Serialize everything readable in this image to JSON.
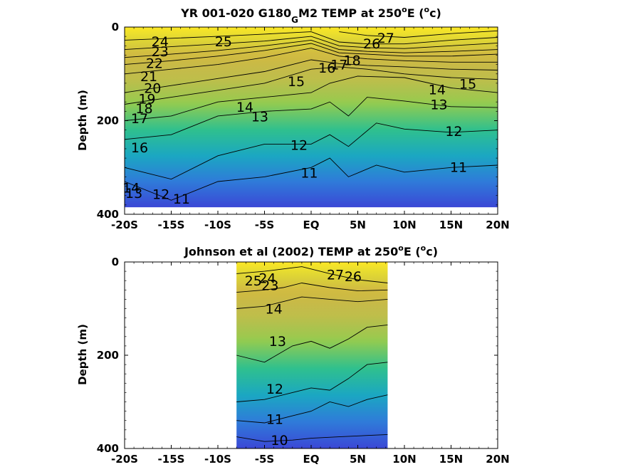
{
  "colors": {
    "colormap": [
      "#3b48d6",
      "#2f7bd9",
      "#1ba7c2",
      "#2fc08e",
      "#8fcb52",
      "#d6bf3c",
      "#f8ac3a",
      "#fde725"
    ],
    "contour_line": "#000000"
  },
  "chart_data": [
    {
      "type": "heatmap",
      "title_main": "YR 001-020 G180",
      "title_sub": "G",
      "title_rest": "M2 TEMP at 250",
      "title_deg": "o",
      "title_end": "E (",
      "title_unit_deg": "o",
      "title_unit": "c)",
      "ylabel": "Depth (m)",
      "xlabel": "",
      "xlim": [
        -20,
        20
      ],
      "ylim": [
        400,
        0
      ],
      "xticks": [
        {
          "value": -20,
          "label": "-20S"
        },
        {
          "value": -15,
          "label": "-15S"
        },
        {
          "value": -10,
          "label": "-10S"
        },
        {
          "value": -5,
          "label": "-5S"
        },
        {
          "value": 0,
          "label": "EQ"
        },
        {
          "value": 5,
          "label": "5N"
        },
        {
          "value": 10,
          "label": "10N"
        },
        {
          "value": 15,
          "label": "15N"
        },
        {
          "value": 20,
          "label": "20N"
        }
      ],
      "yticks": [
        {
          "value": 0,
          "label": "0"
        },
        {
          "value": 200,
          "label": "200"
        },
        {
          "value": 400,
          "label": "400"
        }
      ],
      "data_extent": {
        "lat": [
          -20,
          20
        ],
        "depth": [
          0,
          385
        ]
      },
      "contours": [
        {
          "level": 11,
          "points": [
            [
              -20,
              330
            ],
            [
              -15,
              370
            ],
            [
              -10,
              330
            ],
            [
              -5,
              320
            ],
            [
              0,
              300
            ],
            [
              2,
              280
            ],
            [
              4,
              320
            ],
            [
              7,
              295
            ],
            [
              10,
              310
            ],
            [
              15,
              300
            ],
            [
              20,
              295
            ]
          ]
        },
        {
          "level": 12,
          "points": [
            [
              -20,
              300
            ],
            [
              -15,
              325
            ],
            [
              -10,
              275
            ],
            [
              -5,
              250
            ],
            [
              0,
              250
            ],
            [
              2,
              230
            ],
            [
              4,
              255
            ],
            [
              7,
              205
            ],
            [
              10,
              218
            ],
            [
              15,
              225
            ],
            [
              20,
              220
            ]
          ]
        },
        {
          "level": 13,
          "points": [
            [
              -20,
              240
            ],
            [
              -15,
              230
            ],
            [
              -10,
              190
            ],
            [
              -5,
              180
            ],
            [
              0,
              175
            ],
            [
              2,
              160
            ],
            [
              4,
              190
            ],
            [
              6,
              150
            ],
            [
              10,
              158
            ],
            [
              15,
              170
            ],
            [
              20,
              172
            ]
          ]
        },
        {
          "level": 14,
          "points": [
            [
              -20,
              200
            ],
            [
              -15,
              190
            ],
            [
              -10,
              160
            ],
            [
              -5,
              150
            ],
            [
              0,
              140
            ],
            [
              2,
              120
            ],
            [
              5,
              105
            ],
            [
              10,
              108
            ],
            [
              15,
              130
            ],
            [
              20,
              140
            ]
          ]
        },
        {
          "level": 15,
          "points": [
            [
              -20,
              165
            ],
            [
              -15,
              150
            ],
            [
              -10,
              135
            ],
            [
              -5,
              120
            ],
            [
              0,
              90
            ],
            [
              3,
              85
            ],
            [
              6,
              90
            ],
            [
              10,
              100
            ],
            [
              15,
              108
            ],
            [
              20,
              112
            ]
          ]
        },
        {
          "level": 16,
          "points": [
            [
              -20,
              140
            ],
            [
              -15,
              125
            ],
            [
              -10,
              110
            ],
            [
              -5,
              95
            ],
            [
              0,
              70
            ],
            [
              3,
              78
            ],
            [
              6,
              82
            ],
            [
              10,
              85
            ],
            [
              15,
              90
            ],
            [
              20,
              92
            ]
          ]
        },
        {
          "level": 20,
          "points": [
            [
              -20,
              100
            ],
            [
              -15,
              90
            ],
            [
              -10,
              80
            ],
            [
              -5,
              65
            ],
            [
              0,
              45
            ],
            [
              3,
              62
            ],
            [
              6,
              68
            ],
            [
              10,
              72
            ],
            [
              15,
              75
            ],
            [
              20,
              75
            ]
          ]
        },
        {
          "level": 22,
          "points": [
            [
              -20,
              80
            ],
            [
              -15,
              72
            ],
            [
              -10,
              62
            ],
            [
              -5,
              50
            ],
            [
              0,
              35
            ],
            [
              3,
              55
            ],
            [
              6,
              58
            ],
            [
              10,
              62
            ],
            [
              15,
              62
            ],
            [
              20,
              58
            ]
          ]
        },
        {
          "level": 23,
          "points": [
            [
              -20,
              65
            ],
            [
              -15,
              58
            ],
            [
              -10,
              50
            ],
            [
              -5,
              40
            ],
            [
              0,
              28
            ],
            [
              3,
              48
            ],
            [
              6,
              52
            ],
            [
              10,
              55
            ],
            [
              15,
              52
            ],
            [
              20,
              48
            ]
          ]
        },
        {
          "level": 24,
          "points": [
            [
              -20,
              48
            ],
            [
              -15,
              42
            ],
            [
              -10,
              36
            ],
            [
              -5,
              30
            ],
            [
              0,
              20
            ],
            [
              3,
              40
            ],
            [
              6,
              44
            ],
            [
              10,
              46
            ],
            [
              15,
              40
            ],
            [
              20,
              34
            ]
          ]
        },
        {
          "level": 25,
          "points": [
            [
              -20,
              28
            ],
            [
              -15,
              24
            ],
            [
              -10,
              20
            ],
            [
              -5,
              15
            ],
            [
              0,
              10
            ],
            [
              3,
              32
            ],
            [
              6,
              36
            ],
            [
              10,
              36
            ],
            [
              15,
              28
            ],
            [
              20,
              22
            ]
          ]
        },
        {
          "level": 27,
          "points": [
            [
              3,
              10
            ],
            [
              6,
              18
            ],
            [
              10,
              22
            ],
            [
              15,
              14
            ],
            [
              20,
              8
            ]
          ]
        }
      ],
      "contour_labels": [
        {
          "text": "24",
          "lat": -16.2,
          "depth": 33
        },
        {
          "text": "25",
          "lat": -9.4,
          "depth": 33
        },
        {
          "text": "23",
          "lat": -16.2,
          "depth": 54
        },
        {
          "text": "22",
          "lat": -16.8,
          "depth": 79
        },
        {
          "text": "21",
          "lat": -17.4,
          "depth": 107
        },
        {
          "text": "20",
          "lat": -17.0,
          "depth": 132
        },
        {
          "text": "19",
          "lat": -17.6,
          "depth": 155
        },
        {
          "text": "18",
          "lat": -17.9,
          "depth": 176
        },
        {
          "text": "17",
          "lat": -18.4,
          "depth": 197
        },
        {
          "text": "16",
          "lat": -18.4,
          "depth": 259
        },
        {
          "text": "15",
          "lat": -1.6,
          "depth": 118
        },
        {
          "text": "14",
          "lat": -7.1,
          "depth": 173
        },
        {
          "text": "13",
          "lat": -5.5,
          "depth": 193
        },
        {
          "text": "12",
          "lat": -1.3,
          "depth": 254
        },
        {
          "text": "11",
          "lat": -0.2,
          "depth": 313
        },
        {
          "text": "16",
          "lat": 1.7,
          "depth": 89
        },
        {
          "text": "17",
          "lat": 3.0,
          "depth": 82
        },
        {
          "text": "18",
          "lat": 4.4,
          "depth": 73
        },
        {
          "text": "27",
          "lat": 8.0,
          "depth": 25
        },
        {
          "text": "26",
          "lat": 6.5,
          "depth": 37
        },
        {
          "text": "14",
          "lat": 13.5,
          "depth": 135
        },
        {
          "text": "15",
          "lat": 16.8,
          "depth": 123
        },
        {
          "text": "13",
          "lat": 13.7,
          "depth": 167
        },
        {
          "text": "12",
          "lat": 15.3,
          "depth": 224
        },
        {
          "text": "11",
          "lat": 15.8,
          "depth": 301
        },
        {
          "text": "14",
          "lat": -19.3,
          "depth": 345
        },
        {
          "text": "13",
          "lat": -19.0,
          "depth": 357
        },
        {
          "text": "12",
          "lat": -16.1,
          "depth": 359
        },
        {
          "text": "11",
          "lat": -13.9,
          "depth": 369
        }
      ]
    },
    {
      "type": "heatmap",
      "title_main": "Johnson et al (2002) TEMP at 250",
      "title_deg": "o",
      "title_end": "E (",
      "title_unit_deg": "o",
      "title_unit": "c)",
      "ylabel": "Depth (m)",
      "xlabel": "",
      "xlim": [
        -20,
        20
      ],
      "ylim": [
        400,
        0
      ],
      "xticks": [
        {
          "value": -20,
          "label": "-20S"
        },
        {
          "value": -15,
          "label": "-15S"
        },
        {
          "value": -10,
          "label": "-10S"
        },
        {
          "value": -5,
          "label": "-5S"
        },
        {
          "value": 0,
          "label": "EQ"
        },
        {
          "value": 5,
          "label": "5N"
        },
        {
          "value": 10,
          "label": "10N"
        },
        {
          "value": 15,
          "label": "15N"
        },
        {
          "value": 20,
          "label": "20N"
        }
      ],
      "yticks": [
        {
          "value": 0,
          "label": "0"
        },
        {
          "value": 200,
          "label": "200"
        },
        {
          "value": 400,
          "label": "400"
        }
      ],
      "data_extent": {
        "lat": [
          -8,
          8.2
        ],
        "depth": [
          0,
          400
        ]
      },
      "contours": [
        {
          "level": 10,
          "points": [
            [
              -8,
              375
            ],
            [
              -5,
              385
            ],
            [
              -2,
              382
            ],
            [
              0,
              378
            ],
            [
              3,
              375
            ],
            [
              6,
              372
            ],
            [
              8.2,
              370
            ]
          ]
        },
        {
          "level": 11,
          "points": [
            [
              -8,
              340
            ],
            [
              -5,
              345
            ],
            [
              -2,
              330
            ],
            [
              0,
              320
            ],
            [
              2,
              300
            ],
            [
              4,
              310
            ],
            [
              6,
              295
            ],
            [
              8.2,
              285
            ]
          ]
        },
        {
          "level": 12,
          "points": [
            [
              -8,
              300
            ],
            [
              -5,
              295
            ],
            [
              -2,
              280
            ],
            [
              0,
              270
            ],
            [
              2,
              275
            ],
            [
              4,
              250
            ],
            [
              6,
              220
            ],
            [
              8.2,
              215
            ]
          ]
        },
        {
          "level": 13,
          "points": [
            [
              -8,
              200
            ],
            [
              -5,
              215
            ],
            [
              -2,
              180
            ],
            [
              0,
              170
            ],
            [
              2,
              185
            ],
            [
              4,
              165
            ],
            [
              6,
              140
            ],
            [
              8.2,
              135
            ]
          ]
        },
        {
          "level": 14,
          "points": [
            [
              -8,
              100
            ],
            [
              -5,
              95
            ],
            [
              -3,
              85
            ],
            [
              -1,
              75
            ],
            [
              2,
              80
            ],
            [
              5,
              85
            ],
            [
              8.2,
              80
            ]
          ]
        },
        {
          "level": 20,
          "points": [
            [
              -8,
              65
            ],
            [
              -5,
              60
            ],
            [
              -3,
              55
            ],
            [
              -1,
              45
            ],
            [
              2,
              55
            ],
            [
              5,
              62
            ],
            [
              8.2,
              60
            ]
          ]
        },
        {
          "level": 25,
          "points": [
            [
              -8,
              25
            ],
            [
              -5,
              20
            ],
            [
              -3,
              15
            ],
            [
              -1,
              10
            ],
            [
              2,
              25
            ],
            [
              5,
              38
            ],
            [
              8.2,
              45
            ]
          ]
        }
      ],
      "contour_labels": [
        {
          "text": "25",
          "lat": -6.2,
          "depth": 42
        },
        {
          "text": "24",
          "lat": -4.7,
          "depth": 37
        },
        {
          "text": "23",
          "lat": -4.4,
          "depth": 52
        },
        {
          "text": "14",
          "lat": -4.0,
          "depth": 102
        },
        {
          "text": "13",
          "lat": -3.6,
          "depth": 172
        },
        {
          "text": "12",
          "lat": -3.9,
          "depth": 274
        },
        {
          "text": "11",
          "lat": -3.9,
          "depth": 339
        },
        {
          "text": "10",
          "lat": -3.4,
          "depth": 384
        },
        {
          "text": "27",
          "lat": 2.6,
          "depth": 29
        },
        {
          "text": "26",
          "lat": 4.5,
          "depth": 33
        }
      ]
    }
  ]
}
